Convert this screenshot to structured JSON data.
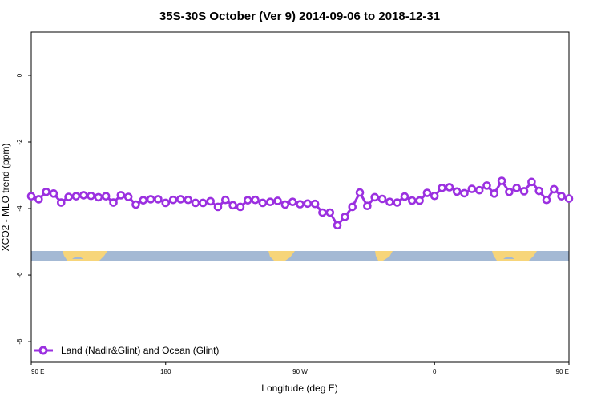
{
  "chart_data": {
    "type": "line",
    "title": "35S-30S October (Ver 9)   2014-09-06 to 2018-12-31",
    "xlabel": "Longitude (deg E)",
    "ylabel": "XCO2 - MLO trend (ppm)",
    "xlim": [
      90,
      450
    ],
    "ylim": [
      -8.6,
      1.3
    ],
    "x_ticks": [
      {
        "value": 90,
        "label": "90 E"
      },
      {
        "value": 180,
        "label": "180"
      },
      {
        "value": 270,
        "label": "90 W"
      },
      {
        "value": 360,
        "label": "0"
      },
      {
        "value": 450,
        "label": "90 E"
      }
    ],
    "y_ticks": [
      {
        "value": 0,
        "label": "0"
      },
      {
        "value": -2,
        "label": "-2"
      },
      {
        "value": -4,
        "label": "-4"
      },
      {
        "value": -6,
        "label": "-6"
      },
      {
        "value": -8,
        "label": "-8"
      }
    ],
    "grid": false,
    "legend_position": "bottom-left",
    "series": [
      {
        "name": "Land (Nadir&Glint) and Ocean (Glint)",
        "color": "#9b30e0",
        "marker": "open-circle",
        "x": [
          90,
          95,
          100,
          105,
          110,
          115,
          120,
          125,
          130,
          135,
          140,
          145,
          150,
          155,
          160,
          165,
          170,
          175,
          180,
          185,
          190,
          195,
          200,
          205,
          210,
          215,
          220,
          225,
          230,
          235,
          240,
          245,
          250,
          255,
          260,
          265,
          270,
          275,
          280,
          285,
          290,
          295,
          300,
          305,
          310,
          315,
          320,
          325,
          330,
          335,
          340,
          345,
          350,
          355,
          360,
          365,
          370,
          375,
          380,
          385,
          390,
          395,
          400,
          405,
          410,
          415,
          420,
          425,
          430,
          435,
          440,
          445,
          450
        ],
        "y": [
          -3.63,
          -3.72,
          -3.5,
          -3.55,
          -3.82,
          -3.65,
          -3.63,
          -3.6,
          -3.62,
          -3.66,
          -3.63,
          -3.82,
          -3.6,
          -3.65,
          -3.88,
          -3.75,
          -3.72,
          -3.72,
          -3.83,
          -3.74,
          -3.72,
          -3.74,
          -3.83,
          -3.83,
          -3.78,
          -3.95,
          -3.74,
          -3.9,
          -3.95,
          -3.75,
          -3.74,
          -3.83,
          -3.8,
          -3.77,
          -3.88,
          -3.8,
          -3.87,
          -3.85,
          -3.86,
          -4.12,
          -4.12,
          -4.5,
          -4.25,
          -3.95,
          -3.52,
          -3.92,
          -3.66,
          -3.71,
          -3.8,
          -3.82,
          -3.64,
          -3.76,
          -3.76,
          -3.53,
          -3.62,
          -3.38,
          -3.36,
          -3.49,
          -3.54,
          -3.41,
          -3.45,
          -3.31,
          -3.55,
          -3.17,
          -3.5,
          -3.38,
          -3.48,
          -3.2,
          -3.47,
          -3.74,
          -3.42,
          -3.63,
          -3.7
        ]
      }
    ]
  }
}
